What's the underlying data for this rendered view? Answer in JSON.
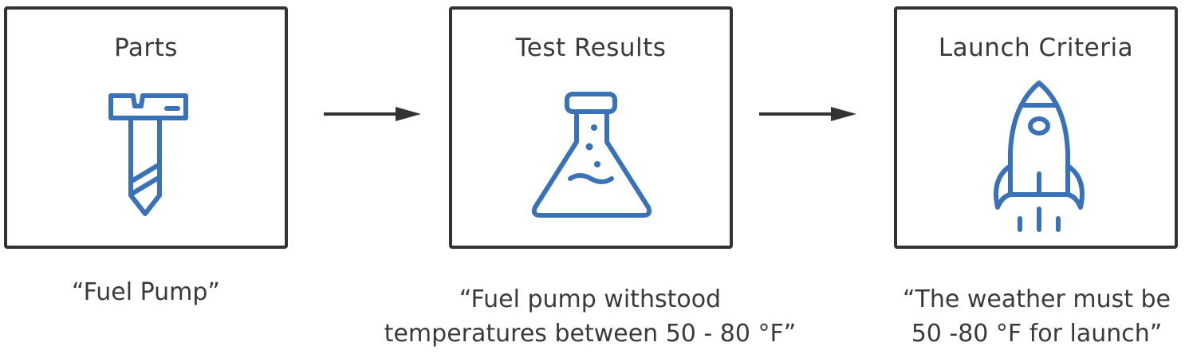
{
  "steps": [
    {
      "title": "Parts",
      "icon": "screw-icon",
      "caption_lines": [
        "“Fuel Pump”"
      ]
    },
    {
      "title": "Test Results",
      "icon": "flask-icon",
      "caption_lines": [
        "“Fuel pump withstood",
        "temperatures between 50 - 80 °F”"
      ]
    },
    {
      "title": "Launch  Criteria",
      "icon": "rocket-icon",
      "caption_lines": [
        "“The weather must be",
        "50 -80 °F for launch”"
      ]
    }
  ],
  "colors": {
    "icon": "#3a72b8",
    "border": "#333333",
    "text": "#3a3a3a"
  }
}
